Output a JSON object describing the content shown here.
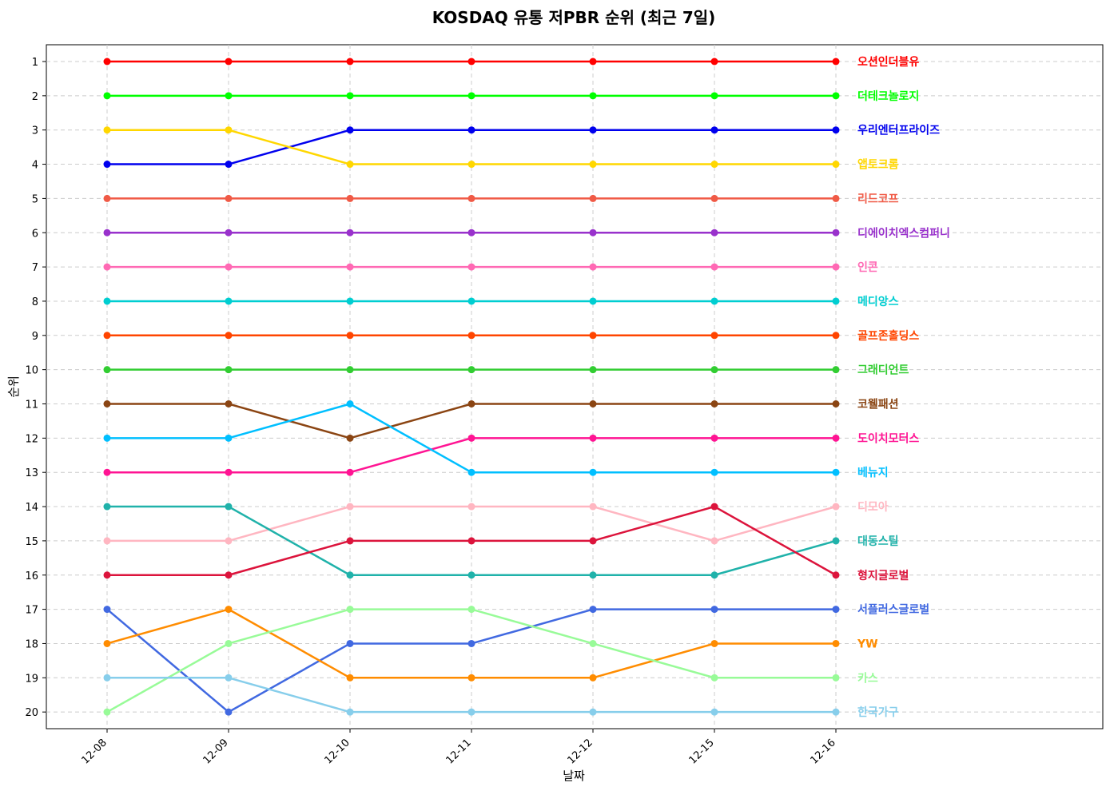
{
  "chart_data": {
    "type": "line",
    "title": "KOSDAQ 유통 저PBR 순위 (최근 7일)",
    "xlabel": "날짜",
    "ylabel": "순위",
    "categories": [
      "12-08",
      "12-09",
      "12-10",
      "12-11",
      "12-12",
      "12-15",
      "12-16"
    ],
    "y_ticks": [
      1,
      2,
      3,
      4,
      5,
      6,
      7,
      8,
      9,
      10,
      11,
      12,
      13,
      14,
      15,
      16,
      17,
      18,
      19,
      20
    ],
    "ylim": [
      20.5,
      0.5
    ],
    "y_inverted": true,
    "grid": true,
    "legend": "series labels at right end of each line",
    "series": [
      {
        "name": "오션인더블유",
        "color": "#ff0000",
        "values": [
          1,
          1,
          1,
          1,
          1,
          1,
          1
        ]
      },
      {
        "name": "더테크놀로지",
        "color": "#00ff00",
        "values": [
          2,
          2,
          2,
          2,
          2,
          2,
          2
        ]
      },
      {
        "name": "우리엔터프라이즈",
        "color": "#0000ee",
        "values": [
          4,
          4,
          3,
          3,
          3,
          3,
          3
        ]
      },
      {
        "name": "앱토크롬",
        "color": "#ffd700",
        "values": [
          3,
          3,
          4,
          4,
          4,
          4,
          4
        ]
      },
      {
        "name": "리드코프",
        "color": "#f05a46",
        "values": [
          5,
          5,
          5,
          5,
          5,
          5,
          5
        ]
      },
      {
        "name": "디에이치엑스컴퍼니",
        "color": "#9932cc",
        "values": [
          6,
          6,
          6,
          6,
          6,
          6,
          6
        ]
      },
      {
        "name": "인콘",
        "color": "#ff69b4",
        "values": [
          7,
          7,
          7,
          7,
          7,
          7,
          7
        ]
      },
      {
        "name": "메디앙스",
        "color": "#00ced1",
        "values": [
          8,
          8,
          8,
          8,
          8,
          8,
          8
        ]
      },
      {
        "name": "골프존홀딩스",
        "color": "#ff4500",
        "values": [
          9,
          9,
          9,
          9,
          9,
          9,
          9
        ]
      },
      {
        "name": "그래디언트",
        "color": "#32cd32",
        "values": [
          10,
          10,
          10,
          10,
          10,
          10,
          10
        ]
      },
      {
        "name": "코웰패션",
        "color": "#8b4513",
        "values": [
          11,
          11,
          12,
          11,
          11,
          11,
          11
        ]
      },
      {
        "name": "도이치모터스",
        "color": "#ff1493",
        "values": [
          13,
          13,
          13,
          12,
          12,
          12,
          12
        ]
      },
      {
        "name": "베뉴지",
        "color": "#00bfff",
        "values": [
          12,
          12,
          11,
          13,
          13,
          13,
          13
        ]
      },
      {
        "name": "디모아",
        "color": "#ffb6c1",
        "values": [
          15,
          15,
          14,
          14,
          14,
          15,
          14
        ]
      },
      {
        "name": "대동스틸",
        "color": "#20b2aa",
        "values": [
          14,
          14,
          16,
          16,
          16,
          16,
          15
        ]
      },
      {
        "name": "형지글로벌",
        "color": "#dc143c",
        "values": [
          16,
          16,
          15,
          15,
          15,
          14,
          16
        ]
      },
      {
        "name": "서플러스글로벌",
        "color": "#4169e1",
        "values": [
          17,
          20,
          18,
          18,
          17,
          17,
          17
        ]
      },
      {
        "name": "YW",
        "color": "#ff8c00",
        "values": [
          18,
          17,
          19,
          19,
          19,
          18,
          18
        ]
      },
      {
        "name": "카스",
        "color": "#98fb98",
        "values": [
          20,
          18,
          17,
          17,
          18,
          19,
          19
        ]
      },
      {
        "name": "한국가구",
        "color": "#87ceeb",
        "values": [
          19,
          19,
          20,
          20,
          20,
          20,
          20
        ]
      }
    ]
  }
}
